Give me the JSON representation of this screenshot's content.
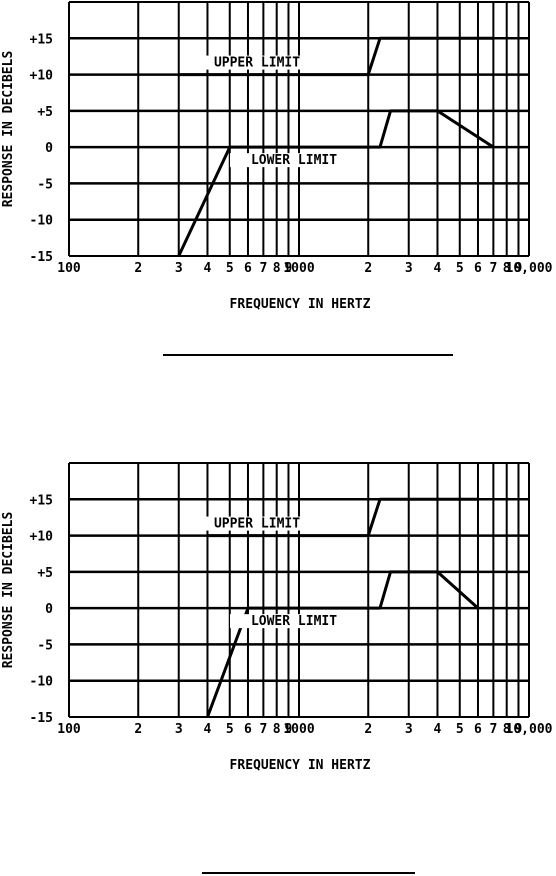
{
  "chart_data": [
    {
      "type": "line",
      "title": "",
      "xlabel": "FREQUENCY IN HERTZ",
      "ylabel": "RESPONSE IN DECIBELS",
      "xscale": "log",
      "xlim": [
        100,
        10000
      ],
      "ylim": [
        -15,
        20
      ],
      "grid": true,
      "y_ticks": [
        -15,
        -10,
        -5,
        0,
        5,
        10,
        15
      ],
      "y_tick_labels": [
        "-15",
        "-10",
        "-5",
        "0",
        "+5",
        "+10",
        "+15"
      ],
      "x_ticks": [
        100,
        200,
        300,
        400,
        500,
        600,
        700,
        800,
        900,
        1000,
        2000,
        3000,
        4000,
        5000,
        6000,
        7000,
        8000,
        9000,
        10000
      ],
      "x_tick_labels": [
        "100",
        "2",
        "3",
        "4",
        "5",
        "6",
        "7",
        "8",
        "9",
        "1000",
        "2",
        "3",
        "4",
        "5",
        "6",
        "7",
        "8",
        "9",
        "10,000"
      ],
      "series": [
        {
          "name": "UPPER LIMIT",
          "x": [
            300,
            2000,
            2250,
            7000
          ],
          "y": [
            10,
            10,
            15,
            15
          ]
        },
        {
          "name": "LOWER LIMIT",
          "x": [
            300,
            500,
            2250,
            2500,
            4000,
            7000
          ],
          "y": [
            -15,
            0,
            0,
            5,
            5,
            0
          ]
        }
      ]
    },
    {
      "type": "line",
      "title": "",
      "xlabel": "FREQUENCY IN HERTZ",
      "ylabel": "RESPONSE IN DECIBELS",
      "xscale": "log",
      "xlim": [
        100,
        10000
      ],
      "ylim": [
        -15,
        20
      ],
      "grid": true,
      "y_ticks": [
        -15,
        -10,
        -5,
        0,
        5,
        10,
        15
      ],
      "y_tick_labels": [
        "-15",
        "-10",
        "-5",
        "0",
        "+5",
        "+10",
        "+15"
      ],
      "x_ticks": [
        100,
        200,
        300,
        400,
        500,
        600,
        700,
        800,
        900,
        1000,
        2000,
        3000,
        4000,
        5000,
        6000,
        7000,
        8000,
        9000,
        10000
      ],
      "x_tick_labels": [
        "100",
        "2",
        "3",
        "4",
        "5",
        "6",
        "7",
        "8",
        "9",
        "1000",
        "2",
        "3",
        "4",
        "5",
        "6",
        "7",
        "8",
        "9",
        "10,000"
      ],
      "series": [
        {
          "name": "UPPER LIMIT",
          "x": [
            400,
            2000,
            2250,
            6000
          ],
          "y": [
            10,
            10,
            15,
            15
          ]
        },
        {
          "name": "LOWER LIMIT",
          "x": [
            400,
            600,
            2250,
            2500,
            4000,
            6000
          ],
          "y": [
            -15,
            0,
            0,
            5,
            5,
            0
          ]
        }
      ]
    }
  ]
}
